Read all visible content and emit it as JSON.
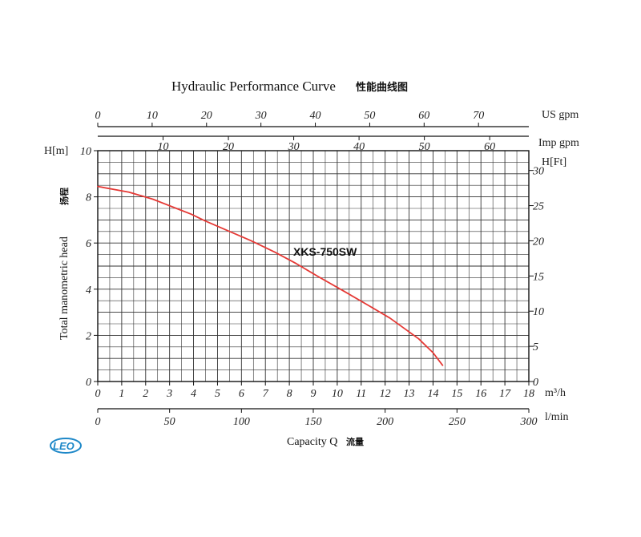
{
  "chart_data": {
    "type": "line",
    "title": "Hydraulic Performance Curve",
    "title_cn": "性能曲线图",
    "ylabel": "Total manometric head",
    "ylabel_cn": "扬程",
    "xlabel": "Capacity Q",
    "xlabel_cn": "流量",
    "y_unit_left": "H[m]",
    "y_unit_right": "H[Ft]",
    "x_unit_m3h": "m³/h",
    "x_unit_lmin": "l/min",
    "x_unit_usgpm": "US gpm",
    "x_unit_impgpm": "Imp gpm",
    "ylim": [
      0,
      10
    ],
    "xlim": [
      0,
      18
    ],
    "grid": true,
    "x_ticks_m3h": [
      "0",
      "1",
      "2",
      "3",
      "4",
      "5",
      "6",
      "7",
      "8",
      "9",
      "10",
      "11",
      "12",
      "13",
      "14",
      "15",
      "16",
      "17",
      "18"
    ],
    "y_ticks_m": [
      "0",
      "2",
      "4",
      "6",
      "8",
      "10"
    ],
    "y_ticks_ft": [
      "0",
      "5",
      "10",
      "15",
      "20",
      "25",
      "30"
    ],
    "x_ticks_lmin": [
      "0",
      "50",
      "100",
      "150",
      "200",
      "250",
      "300"
    ],
    "x_ticks_usgpm": [
      "0",
      "10",
      "20",
      "30",
      "40",
      "50",
      "60",
      "70"
    ],
    "x_ticks_impgpm": [
      "10",
      "20",
      "30",
      "40",
      "50",
      "60"
    ],
    "series": [
      {
        "name": "XKS-750SW",
        "color": "#e53935",
        "x": [
          0,
          1.3,
          2.3,
          3.4,
          3.9,
          4.5,
          5.4,
          6.4,
          7.4,
          8.3,
          9.2,
          10.3,
          11.3,
          12.2,
          13.0,
          13.4,
          14.0,
          14.4
        ],
        "y": [
          8.45,
          8.2,
          7.9,
          7.45,
          7.25,
          6.95,
          6.55,
          6.1,
          5.6,
          5.1,
          4.55,
          3.9,
          3.3,
          2.75,
          2.15,
          1.85,
          1.25,
          0.7
        ]
      }
    ]
  },
  "logo": {
    "text": "LEO",
    "color": "#1e88c8"
  }
}
